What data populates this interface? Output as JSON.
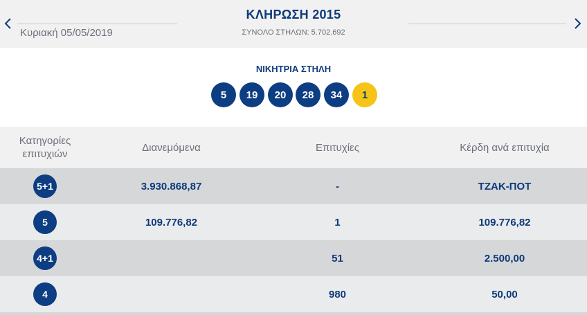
{
  "header": {
    "prev_icon": "chevron-left-icon",
    "next_icon": "chevron-right-icon",
    "draw_date": "Κυριακή 05/05/2019",
    "draw_title": "ΚΛΗΡΩΣΗ 2015",
    "total_columns": "ΣΥΝΟΛΟ ΣΤΗΛΩΝ: 5.702.692"
  },
  "winning": {
    "title": "ΝΙΚΗΤΡΙΑ ΣΤΗΛΗ",
    "numbers": [
      "5",
      "19",
      "20",
      "28",
      "34"
    ],
    "joker": "1",
    "colors": {
      "ball": "#0d3d82",
      "joker": "#f6c417"
    }
  },
  "table": {
    "headers": {
      "category": "Κατηγορίες επιτυχιών",
      "distributed": "Διανεμόμενα",
      "wins": "Επιτυχίες",
      "prize_per_win": "Κέρδη ανά επιτυχία"
    },
    "rows": [
      {
        "category": "5+1",
        "distributed": "3.930.868,87",
        "wins": "-",
        "prize": "ΤΖΑΚ-ΠΟΤ"
      },
      {
        "category": "5",
        "distributed": "109.776,82",
        "wins": "1",
        "prize": "109.776,82"
      },
      {
        "category": "4+1",
        "distributed": "",
        "wins": "51",
        "prize": "2.500,00"
      },
      {
        "category": "4",
        "distributed": "",
        "wins": "980",
        "prize": "50,00"
      }
    ]
  }
}
